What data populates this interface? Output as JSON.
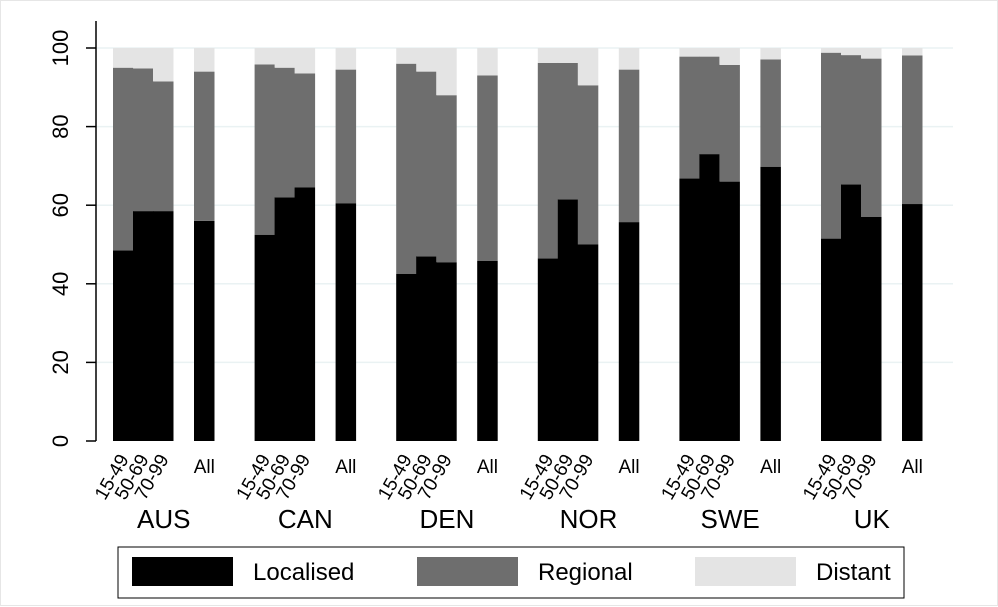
{
  "chart_data": {
    "type": "bar",
    "stacked": true,
    "ylim": [
      0,
      100
    ],
    "yticks": [
      0,
      20,
      40,
      60,
      80,
      100
    ],
    "grid": true,
    "legend_position": "bottom",
    "colors": {
      "Localised": "#000000",
      "Regional": "#6e6e6e",
      "Distant": "#e4e4e4"
    },
    "categories": [
      "15-49",
      "50-69",
      "70-99",
      "All"
    ],
    "groups": [
      {
        "name": "AUS",
        "bars": [
          {
            "category": "15-49",
            "Localised": 48.5,
            "Regional": 46.5,
            "Distant": 5.0
          },
          {
            "category": "50-69",
            "Localised": 58.5,
            "Regional": 36.3,
            "Distant": 5.2
          },
          {
            "category": "70-99",
            "Localised": 58.5,
            "Regional": 33.0,
            "Distant": 8.5
          },
          {
            "category": "All",
            "Localised": 56.0,
            "Regional": 38.0,
            "Distant": 6.0
          }
        ]
      },
      {
        "name": "CAN",
        "bars": [
          {
            "category": "15-49",
            "Localised": 52.5,
            "Regional": 43.3,
            "Distant": 4.2
          },
          {
            "category": "50-69",
            "Localised": 62.0,
            "Regional": 33.0,
            "Distant": 5.0
          },
          {
            "category": "70-99",
            "Localised": 64.5,
            "Regional": 29.0,
            "Distant": 6.5
          },
          {
            "category": "All",
            "Localised": 60.5,
            "Regional": 34.0,
            "Distant": 5.5
          }
        ]
      },
      {
        "name": "DEN",
        "bars": [
          {
            "category": "15-49",
            "Localised": 42.5,
            "Regional": 53.5,
            "Distant": 4.0
          },
          {
            "category": "50-69",
            "Localised": 47.0,
            "Regional": 47.0,
            "Distant": 6.0
          },
          {
            "category": "70-99",
            "Localised": 45.5,
            "Regional": 42.5,
            "Distant": 12.0
          },
          {
            "category": "All",
            "Localised": 45.8,
            "Regional": 47.2,
            "Distant": 7.0
          }
        ]
      },
      {
        "name": "NOR",
        "bars": [
          {
            "category": "15-49",
            "Localised": 46.5,
            "Regional": 49.7,
            "Distant": 3.8
          },
          {
            "category": "50-69",
            "Localised": 61.5,
            "Regional": 34.7,
            "Distant": 3.8
          },
          {
            "category": "70-99",
            "Localised": 50.0,
            "Regional": 40.5,
            "Distant": 9.5
          },
          {
            "category": "All",
            "Localised": 55.7,
            "Regional": 38.8,
            "Distant": 5.5
          }
        ]
      },
      {
        "name": "SWE",
        "bars": [
          {
            "category": "15-49",
            "Localised": 66.8,
            "Regional": 31.0,
            "Distant": 2.2
          },
          {
            "category": "50-69",
            "Localised": 73.0,
            "Regional": 24.8,
            "Distant": 2.2
          },
          {
            "category": "70-99",
            "Localised": 66.0,
            "Regional": 29.7,
            "Distant": 4.3
          },
          {
            "category": "All",
            "Localised": 69.8,
            "Regional": 27.3,
            "Distant": 2.9
          }
        ]
      },
      {
        "name": "UK",
        "bars": [
          {
            "category": "15-49",
            "Localised": 51.5,
            "Regional": 47.3,
            "Distant": 1.2
          },
          {
            "category": "50-69",
            "Localised": 65.3,
            "Regional": 32.9,
            "Distant": 1.8
          },
          {
            "category": "70-99",
            "Localised": 57.0,
            "Regional": 40.3,
            "Distant": 2.7
          },
          {
            "category": "All",
            "Localised": 60.3,
            "Regional": 37.8,
            "Distant": 1.9
          }
        ]
      }
    ],
    "series": [
      {
        "name": "Localised"
      },
      {
        "name": "Regional"
      },
      {
        "name": "Distant"
      }
    ]
  }
}
